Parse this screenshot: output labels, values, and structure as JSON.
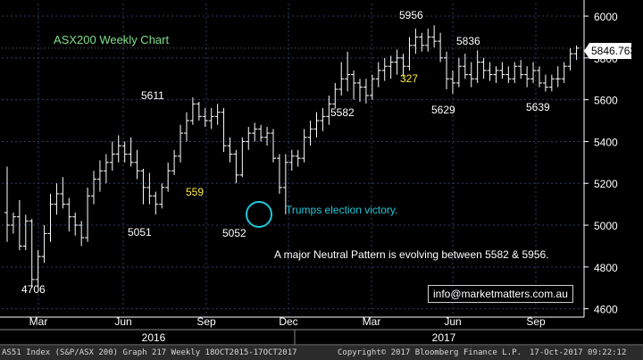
{
  "chart_data": {
    "type": "candlestick",
    "title": "ASX200 Weekly Chart",
    "frequency": "Weekly",
    "y_axis": {
      "ticks": [
        4600,
        4800,
        5000,
        5200,
        5400,
        5600,
        5800,
        6000
      ],
      "range": [
        4560,
        6060
      ],
      "position": "right"
    },
    "x_axis": {
      "month_labels": [
        "Mar",
        "Jun",
        "Sep",
        "Dec",
        "Mar",
        "Jun",
        "Sep"
      ],
      "year_labels": [
        "2016",
        "2017"
      ]
    },
    "last_price": 5846.763,
    "last_price_label": "5846.763",
    "ohlc": [
      [
        5060,
        5280,
        4920,
        5000
      ],
      [
        5000,
        5060,
        4960,
        5040
      ],
      [
        5040,
        5120,
        4880,
        4900
      ],
      [
        4900,
        5050,
        4880,
        5020
      ],
      [
        5020,
        5030,
        4700,
        4740
      ],
      [
        4740,
        4880,
        4706,
        4850
      ],
      [
        4850,
        5000,
        4820,
        4960
      ],
      [
        4960,
        5150,
        4920,
        5100
      ],
      [
        5100,
        5200,
        5050,
        5150
      ],
      [
        5150,
        5230,
        5080,
        5100
      ],
      [
        5100,
        5130,
        4970,
        5040
      ],
      [
        5040,
        5060,
        4950,
        5000
      ],
      [
        5000,
        5020,
        4900,
        4940
      ],
      [
        4940,
        5180,
        4920,
        5140
      ],
      [
        5140,
        5260,
        5100,
        5220
      ],
      [
        5220,
        5310,
        5160,
        5260
      ],
      [
        5260,
        5340,
        5200,
        5300
      ],
      [
        5300,
        5400,
        5260,
        5340
      ],
      [
        5340,
        5430,
        5300,
        5380
      ],
      [
        5380,
        5400,
        5300,
        5340
      ],
      [
        5340,
        5420,
        5280,
        5300
      ],
      [
        5300,
        5360,
        5220,
        5260
      ],
      [
        5260,
        5270,
        5100,
        5180
      ],
      [
        5180,
        5250,
        5100,
        5140
      ],
      [
        5140,
        5160,
        5051,
        5100
      ],
      [
        5100,
        5200,
        5080,
        5180
      ],
      [
        5180,
        5300,
        5160,
        5260
      ],
      [
        5260,
        5360,
        5240,
        5330
      ],
      [
        5330,
        5480,
        5300,
        5440
      ],
      [
        5440,
        5540,
        5400,
        5500
      ],
      [
        5500,
        5611,
        5480,
        5580
      ],
      [
        5580,
        5590,
        5500,
        5520
      ],
      [
        5520,
        5560,
        5470,
        5500
      ],
      [
        5500,
        5560,
        5460,
        5520
      ],
      [
        5520,
        5580,
        5480,
        5540
      ],
      [
        5540,
        5560,
        5350,
        5380
      ],
      [
        5380,
        5420,
        5300,
        5340
      ],
      [
        5340,
        5360,
        5200,
        5240
      ],
      [
        5240,
        5420,
        5230,
        5400
      ],
      [
        5400,
        5470,
        5360,
        5440
      ],
      [
        5440,
        5490,
        5400,
        5460
      ],
      [
        5460,
        5480,
        5400,
        5420
      ],
      [
        5420,
        5470,
        5380,
        5440
      ],
      [
        5440,
        5460,
        5300,
        5320
      ],
      [
        5320,
        5340,
        5150,
        5180
      ],
      [
        5180,
        5340,
        5052,
        5300
      ],
      [
        5300,
        5360,
        5260,
        5330
      ],
      [
        5330,
        5360,
        5280,
        5320
      ],
      [
        5320,
        5460,
        5300,
        5420
      ],
      [
        5420,
        5500,
        5380,
        5460
      ],
      [
        5460,
        5540,
        5420,
        5500
      ],
      [
        5500,
        5560,
        5450,
        5520
      ],
      [
        5520,
        5620,
        5480,
        5580
      ],
      [
        5580,
        5680,
        5560,
        5650
      ],
      [
        5650,
        5780,
        5620,
        5700
      ],
      [
        5700,
        5830,
        5640,
        5720
      ],
      [
        5720,
        5740,
        5600,
        5680
      ],
      [
        5680,
        5700,
        5590,
        5660
      ],
      [
        5660,
        5700,
        5582,
        5620
      ],
      [
        5620,
        5720,
        5600,
        5700
      ],
      [
        5700,
        5780,
        5660,
        5740
      ],
      [
        5740,
        5800,
        5690,
        5760
      ],
      [
        5760,
        5810,
        5700,
        5780
      ],
      [
        5780,
        5840,
        5720,
        5800
      ],
      [
        5800,
        5820,
        5710,
        5760
      ],
      [
        5760,
        5900,
        5740,
        5860
      ],
      [
        5860,
        5940,
        5820,
        5900
      ],
      [
        5900,
        5920,
        5830,
        5860
      ],
      [
        5860,
        5940,
        5830,
        5900
      ],
      [
        5900,
        5956,
        5850,
        5880
      ],
      [
        5880,
        5920,
        5780,
        5800
      ],
      [
        5800,
        5830,
        5650,
        5700
      ],
      [
        5700,
        5740,
        5629,
        5680
      ],
      [
        5680,
        5800,
        5660,
        5760
      ],
      [
        5760,
        5820,
        5700,
        5720
      ],
      [
        5720,
        5780,
        5660,
        5700
      ],
      [
        5700,
        5836,
        5680,
        5780
      ],
      [
        5780,
        5800,
        5700,
        5740
      ],
      [
        5740,
        5780,
        5690,
        5720
      ],
      [
        5720,
        5760,
        5680,
        5740
      ],
      [
        5740,
        5780,
        5700,
        5720
      ],
      [
        5720,
        5760,
        5680,
        5700
      ],
      [
        5700,
        5780,
        5680,
        5760
      ],
      [
        5760,
        5790,
        5700,
        5720
      ],
      [
        5720,
        5760,
        5660,
        5700
      ],
      [
        5700,
        5780,
        5680,
        5740
      ],
      [
        5740,
        5760,
        5660,
        5680
      ],
      [
        5680,
        5720,
        5639,
        5660
      ],
      [
        5660,
        5720,
        5640,
        5700
      ],
      [
        5700,
        5760,
        5660,
        5700
      ],
      [
        5700,
        5780,
        5680,
        5760
      ],
      [
        5760,
        5846,
        5740,
        5820
      ],
      [
        5820,
        5860,
        5790,
        5846.763
      ]
    ],
    "annotations": {
      "price_labels": [
        {
          "text": "4706",
          "value": 4706
        },
        {
          "text": "5051",
          "value": 5051
        },
        {
          "text": "5611",
          "value": 5611
        },
        {
          "text": "5052",
          "value": 5052
        },
        {
          "text": "5582",
          "value": 5582
        },
        {
          "text": "5956",
          "value": 5956
        },
        {
          "text": "5836",
          "value": 5836
        },
        {
          "text": "5629",
          "value": 5629
        },
        {
          "text": "5639",
          "value": 5639
        }
      ],
      "count_labels": [
        {
          "text": "559"
        },
        {
          "text": "327"
        }
      ],
      "election_note": "Trumps election victory.",
      "pattern_note": "A major Neutral Pattern is evolving between 5582 & 5956.",
      "email": "info@marketmatters.com.au"
    },
    "colors": {
      "background": "#000000",
      "bars": "#ffffff",
      "grid": "#2a4060",
      "title": "#7fe08a",
      "count_labels": "#ffef3c",
      "election": "#20c8d8",
      "text": "#ffffff",
      "price_tag": "#ffffff"
    }
  },
  "footer": {
    "left": "AS51 Index (S&P/ASX 200) Graph 217  Weekly 18OCT2015-17OCT2017",
    "middle": "Copyright© 2017 Bloomberg Finance L.P.",
    "right": "17-Oct-2017 09:22:12"
  }
}
